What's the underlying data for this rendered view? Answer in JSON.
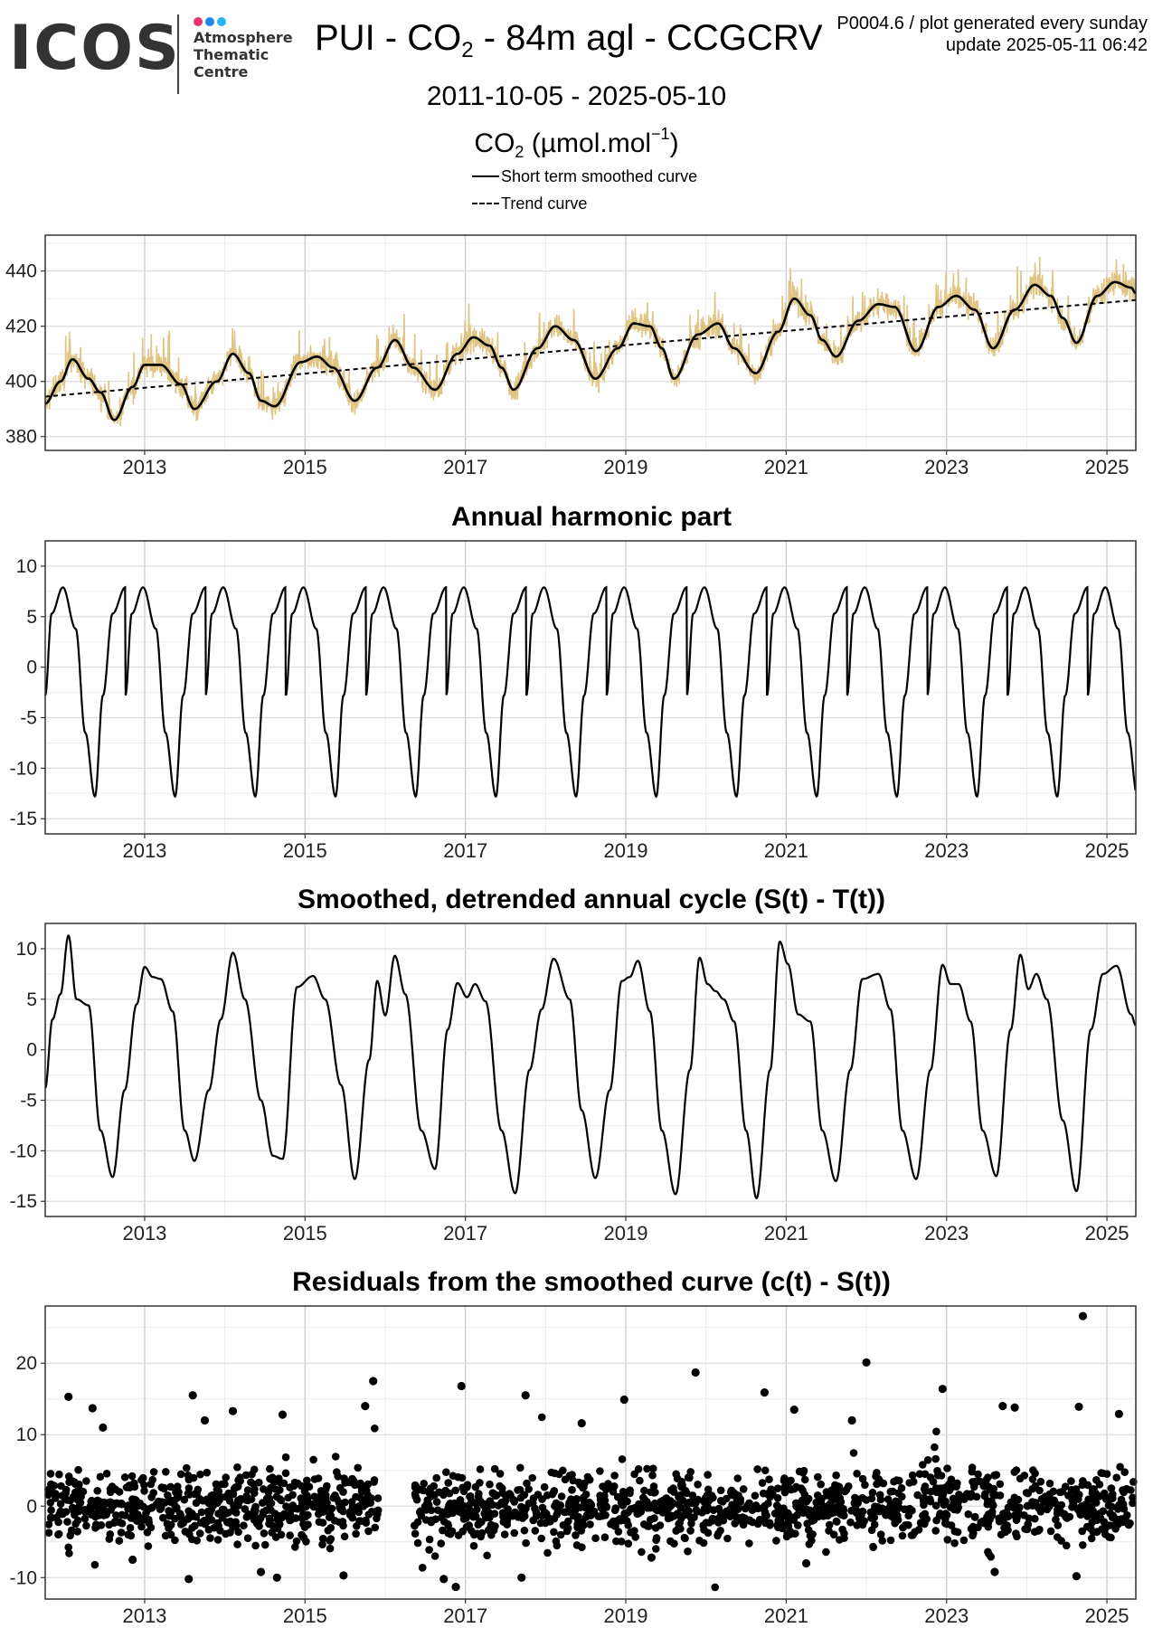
{
  "header": {
    "logo_text": "ICOS",
    "logo_sub_lines": [
      "Atmosphere",
      "Thematic",
      "Centre"
    ],
    "logo_colors": [
      "#e8336d",
      "#1e88e5",
      "#29b6f6"
    ],
    "title_prefix": "PUI - CO",
    "title_sub": "2",
    "title_suffix": " - 84m agl - CCGCRV",
    "meta_line1": "P0004.6 / plot generated every sunday",
    "meta_line2": "update  2025-05-11 06:42",
    "date_range": "2011-10-05 - 2025-05-10",
    "unit_prefix": "CO",
    "unit_sub": "2",
    "unit_main": " (µmol.mol",
    "unit_sup": "−1",
    "unit_close": ")",
    "legend_smoothed": "Short term smoothed curve",
    "legend_trend": "Trend curve"
  },
  "chart_data": [
    {
      "id": "co2",
      "type": "line",
      "title": "",
      "x_range": [
        2011.76,
        2025.36
      ],
      "xlim": [
        2011.76,
        2025.36
      ],
      "ylim": [
        375,
        453
      ],
      "x_ticks": [
        2013,
        2015,
        2017,
        2019,
        2021,
        2023,
        2025
      ],
      "x_tick_labels": [
        "2013",
        "2015",
        "2017",
        "2019",
        "2021",
        "2023",
        "2025"
      ],
      "y_ticks": [
        380,
        400,
        420,
        440
      ],
      "y_tick_labels": [
        "380",
        "400",
        "420",
        "440"
      ],
      "grid": true,
      "colors": {
        "raw": "#e0c483",
        "smoothed": "#000000",
        "trend": "#000000"
      },
      "trend": {
        "start": 394.5,
        "end": 429.5,
        "slope_per_year": 2.57
      },
      "series": [
        {
          "name": "Short term smoothed curve",
          "style": "solid",
          "x": [
            2011.76,
            2011.95,
            2012.1,
            2012.3,
            2012.45,
            2012.62,
            2012.85,
            2013.0,
            2013.2,
            2013.45,
            2013.62,
            2013.9,
            2014.1,
            2014.3,
            2014.45,
            2014.62,
            2014.95,
            2015.15,
            2015.35,
            2015.62,
            2015.9,
            2016.12,
            2016.35,
            2016.62,
            2016.9,
            2017.1,
            2017.3,
            2017.45,
            2017.6,
            2017.9,
            2018.12,
            2018.35,
            2018.62,
            2018.9,
            2019.1,
            2019.3,
            2019.45,
            2019.6,
            2019.9,
            2020.15,
            2020.35,
            2020.62,
            2020.9,
            2021.1,
            2021.3,
            2021.45,
            2021.62,
            2021.9,
            2022.15,
            2022.35,
            2022.62,
            2022.9,
            2023.12,
            2023.35,
            2023.58,
            2023.85,
            2024.1,
            2024.3,
            2024.45,
            2024.62,
            2024.88,
            2025.1,
            2025.3,
            2025.36
          ],
          "y": [
            392,
            400,
            408,
            401,
            396,
            386,
            398,
            406,
            406,
            399,
            390,
            400,
            410,
            403,
            393,
            391,
            407,
            409,
            405,
            393,
            405,
            415,
            405,
            397,
            410,
            416,
            413,
            405,
            397,
            412,
            420,
            415,
            401,
            412,
            421,
            420,
            412,
            401,
            417,
            421,
            412,
            403,
            418,
            430,
            424,
            415,
            409,
            422,
            428,
            427,
            411,
            427,
            431,
            426,
            412,
            426,
            435,
            431,
            423,
            414,
            431,
            436,
            434,
            432
          ]
        }
      ]
    },
    {
      "id": "harmonic",
      "type": "line",
      "title": "Annual harmonic part",
      "xlim": [
        2011.76,
        2025.36
      ],
      "ylim": [
        -16.5,
        12.5
      ],
      "x_ticks": [
        2013,
        2015,
        2017,
        2019,
        2021,
        2023,
        2025
      ],
      "x_tick_labels": [
        "2013",
        "2015",
        "2017",
        "2019",
        "2021",
        "2023",
        "2025"
      ],
      "y_ticks": [
        -15,
        -10,
        -5,
        0,
        5,
        10
      ],
      "y_tick_labels": [
        "-15",
        "-10",
        "-5",
        "0",
        "5",
        "10"
      ],
      "grid": true,
      "shape": {
        "phase_x": [
          0.0,
          0.08,
          0.22,
          0.38,
          0.5,
          0.62,
          0.72,
          0.84,
          1.0
        ],
        "phase_y": [
          -2.8,
          5.3,
          7.9,
          3.8,
          -6.5,
          -12.8,
          -2.8,
          5.3,
          7.9
        ],
        "peak": 7.9,
        "trough": -12.8
      }
    },
    {
      "id": "detrended",
      "type": "line",
      "title": "Smoothed, detrended annual cycle (S(t) - T(t))",
      "xlim": [
        2011.76,
        2025.36
      ],
      "ylim": [
        -16.5,
        12.5
      ],
      "x_ticks": [
        2013,
        2015,
        2017,
        2019,
        2021,
        2023,
        2025
      ],
      "x_tick_labels": [
        "2013",
        "2015",
        "2017",
        "2019",
        "2021",
        "2023",
        "2025"
      ],
      "y_ticks": [
        -15,
        -10,
        -5,
        0,
        5,
        10
      ],
      "y_tick_labels": [
        "-15",
        "-10",
        "-5",
        "0",
        "5",
        "10"
      ],
      "grid": true,
      "x": [
        2011.76,
        2011.85,
        2011.95,
        2012.05,
        2012.15,
        2012.3,
        2012.45,
        2012.6,
        2012.75,
        2012.9,
        2013.0,
        2013.1,
        2013.2,
        2013.35,
        2013.5,
        2013.62,
        2013.8,
        2013.95,
        2014.1,
        2014.25,
        2014.45,
        2014.6,
        2014.72,
        2014.9,
        2015.1,
        2015.25,
        2015.45,
        2015.62,
        2015.8,
        2015.9,
        2016.0,
        2016.12,
        2016.25,
        2016.45,
        2016.62,
        2016.78,
        2016.9,
        2017.02,
        2017.12,
        2017.25,
        2017.45,
        2017.62,
        2017.8,
        2017.95,
        2018.1,
        2018.3,
        2018.45,
        2018.62,
        2018.8,
        2018.95,
        2019.05,
        2019.15,
        2019.3,
        2019.45,
        2019.62,
        2019.8,
        2019.92,
        2020.02,
        2020.12,
        2020.22,
        2020.35,
        2020.5,
        2020.63,
        2020.8,
        2020.92,
        2021.02,
        2021.15,
        2021.3,
        2021.45,
        2021.62,
        2021.8,
        2021.95,
        2022.15,
        2022.3,
        2022.45,
        2022.62,
        2022.8,
        2022.95,
        2023.05,
        2023.15,
        2023.3,
        2023.45,
        2023.62,
        2023.8,
        2023.92,
        2024.02,
        2024.12,
        2024.25,
        2024.45,
        2024.62,
        2024.8,
        2024.95,
        2025.12,
        2025.3,
        2025.36
      ],
      "y": [
        -3.8,
        3.0,
        5.5,
        11.3,
        5.0,
        4.4,
        -8.0,
        -12.6,
        -4.0,
        4.5,
        8.2,
        7.2,
        7.0,
        3.8,
        -8.0,
        -11.0,
        -4.0,
        3.0,
        9.6,
        5.0,
        -5.0,
        -10.5,
        -10.8,
        6.2,
        7.3,
        5.0,
        -3.5,
        -12.8,
        -1.0,
        6.8,
        3.4,
        9.3,
        5.5,
        -8.0,
        -11.8,
        2.0,
        6.6,
        5.2,
        6.5,
        4.8,
        -8.0,
        -14.2,
        -2.0,
        4.0,
        9.0,
        5.0,
        -6.0,
        -12.7,
        -4.0,
        6.8,
        7.2,
        8.8,
        3.8,
        -8.0,
        -14.3,
        -2.0,
        9.1,
        6.5,
        5.8,
        5.0,
        2.8,
        -8.0,
        -14.7,
        -2.0,
        10.7,
        8.5,
        3.5,
        2.8,
        -8.0,
        -13.0,
        -2.0,
        7.0,
        7.5,
        4.0,
        -8.0,
        -12.8,
        -2.0,
        8.4,
        6.5,
        6.5,
        2.8,
        -8.0,
        -12.5,
        2.0,
        9.4,
        6.0,
        7.5,
        5.0,
        -7.0,
        -14.0,
        2.0,
        7.5,
        8.3,
        3.5,
        2.4
      ]
    },
    {
      "id": "residuals",
      "type": "scatter",
      "title": "Residuals from the smoothed curve (c(t) - S(t))",
      "xlim": [
        2011.76,
        2025.36
      ],
      "ylim": [
        -13,
        28
      ],
      "x_ticks": [
        2013,
        2015,
        2017,
        2019,
        2021,
        2023,
        2025
      ],
      "x_tick_labels": [
        "2013",
        "2015",
        "2017",
        "2019",
        "2021",
        "2023",
        "2025"
      ],
      "y_ticks": [
        -10,
        0,
        10,
        20
      ],
      "y_tick_labels": [
        "-10",
        "0",
        "10",
        "20"
      ],
      "grid": true,
      "outliers": [
        {
          "x": 2012.05,
          "y": 15.3
        },
        {
          "x": 2012.35,
          "y": 13.7
        },
        {
          "x": 2012.48,
          "y": 11.0
        },
        {
          "x": 2013.6,
          "y": 15.5
        },
        {
          "x": 2013.75,
          "y": 12.0
        },
        {
          "x": 2014.1,
          "y": 13.3
        },
        {
          "x": 2013.55,
          "y": -10.2
        },
        {
          "x": 2014.45,
          "y": -9.2
        },
        {
          "x": 2014.65,
          "y": -10.0
        },
        {
          "x": 2014.72,
          "y": 12.8
        },
        {
          "x": 2015.85,
          "y": 17.5
        },
        {
          "x": 2015.75,
          "y": 14.0
        },
        {
          "x": 2015.48,
          "y": -9.7
        },
        {
          "x": 2016.73,
          "y": -10.2
        },
        {
          "x": 2016.88,
          "y": -11.3
        },
        {
          "x": 2016.95,
          "y": 16.8
        },
        {
          "x": 2017.75,
          "y": 15.5
        },
        {
          "x": 2018.45,
          "y": 11.6
        },
        {
          "x": 2017.7,
          "y": -10.0
        },
        {
          "x": 2018.98,
          "y": 14.9
        },
        {
          "x": 2019.87,
          "y": 18.7
        },
        {
          "x": 2020.73,
          "y": 15.9
        },
        {
          "x": 2021.1,
          "y": 13.5
        },
        {
          "x": 2021.82,
          "y": 12.0
        },
        {
          "x": 2022.0,
          "y": 20.1
        },
        {
          "x": 2022.95,
          "y": 16.4
        },
        {
          "x": 2023.6,
          "y": -9.2
        },
        {
          "x": 2023.7,
          "y": 14.0
        },
        {
          "x": 2023.85,
          "y": 13.8
        },
        {
          "x": 2024.65,
          "y": 13.9
        },
        {
          "x": 2024.7,
          "y": 26.6
        },
        {
          "x": 2024.62,
          "y": -9.8
        },
        {
          "x": 2025.15,
          "y": 12.9
        },
        {
          "x": 2012.85,
          "y": -7.5
        },
        {
          "x": 2019.32,
          "y": -7.2
        },
        {
          "x": 2021.25,
          "y": -8.0
        }
      ],
      "bulk": {
        "mean": 0,
        "spread": 3.3,
        "count": 1800,
        "gap": [
          2015.92,
          2016.36
        ]
      }
    }
  ]
}
